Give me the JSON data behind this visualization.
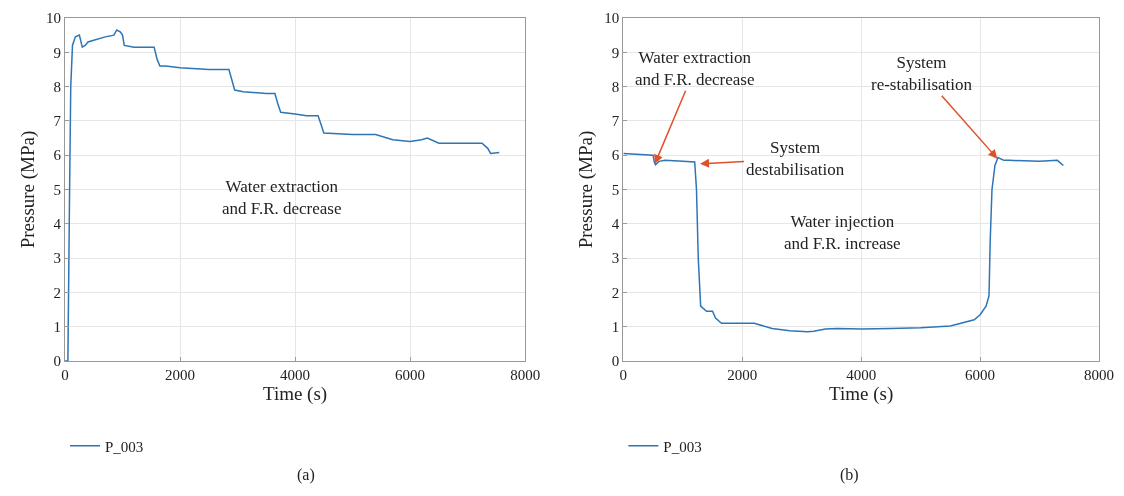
{
  "chart_data": [
    {
      "type": "line",
      "title": "(a)",
      "xlabel": "Time (s)",
      "ylabel": "Pressure (MPa)",
      "xlim": [
        0,
        8000
      ],
      "xticks": [
        0,
        2000,
        4000,
        6000,
        8000
      ],
      "ylim": [
        0,
        10
      ],
      "yticks": [
        0,
        1,
        2,
        3,
        4,
        5,
        6,
        7,
        8,
        9,
        10
      ],
      "grid": true,
      "legend": "bottom",
      "x": [
        0,
        50,
        80,
        100,
        130,
        180,
        250,
        300,
        350,
        400,
        500,
        700,
        850,
        900,
        960,
        1000,
        1030,
        1200,
        1550,
        1600,
        1650,
        1750,
        2000,
        2500,
        2850,
        2900,
        2950,
        3100,
        3500,
        3650,
        3700,
        3750,
        4000,
        4200,
        4400,
        4450,
        4500,
        5000,
        5400,
        5700,
        6000,
        6200,
        6300,
        6500,
        7000,
        7250,
        7350,
        7400,
        7550
      ],
      "series": [
        {
          "name": "P_003",
          "color": "#2e75b6",
          "values": [
            0,
            0,
            5,
            8,
            9.2,
            9.45,
            9.5,
            9.15,
            9.2,
            9.3,
            9.35,
            9.45,
            9.5,
            9.65,
            9.6,
            9.5,
            9.2,
            9.15,
            9.15,
            8.8,
            8.6,
            8.6,
            8.55,
            8.5,
            8.5,
            8.2,
            7.9,
            7.85,
            7.8,
            7.8,
            7.5,
            7.25,
            7.2,
            7.15,
            7.15,
            6.9,
            6.65,
            6.6,
            6.6,
            6.45,
            6.4,
            6.45,
            6.5,
            6.35,
            6.35,
            6.35,
            6.2,
            6.05,
            6.08
          ]
        }
      ],
      "annotations": [
        "Water extraction\nand F.R. decrease"
      ]
    },
    {
      "type": "line",
      "title": "(b)",
      "xlabel": "Time (s)",
      "ylabel": "Pressure (MPa)",
      "xlim": [
        0,
        8000
      ],
      "xticks": [
        0,
        2000,
        4000,
        6000,
        8000
      ],
      "ylim": [
        0,
        10
      ],
      "yticks": [
        0,
        1,
        2,
        3,
        4,
        5,
        6,
        7,
        8,
        9,
        10
      ],
      "grid": true,
      "legend": "bottom",
      "x": [
        0,
        500,
        520,
        540,
        600,
        700,
        1000,
        1200,
        1230,
        1260,
        1300,
        1400,
        1500,
        1550,
        1650,
        2000,
        2200,
        2500,
        2800,
        3100,
        3200,
        3400,
        3600,
        4000,
        4500,
        5000,
        5500,
        5900,
        6000,
        6100,
        6150,
        6170,
        6200,
        6250,
        6300,
        6400,
        6500,
        7000,
        7300,
        7400
      ],
      "series": [
        {
          "name": "P_003",
          "color": "#2e75b6",
          "values": [
            6.05,
            6.0,
            5.8,
            5.72,
            5.82,
            5.85,
            5.82,
            5.8,
            5.0,
            3.0,
            1.6,
            1.45,
            1.45,
            1.25,
            1.1,
            1.1,
            1.1,
            0.95,
            0.88,
            0.85,
            0.87,
            0.93,
            0.95,
            0.93,
            0.95,
            0.97,
            1.02,
            1.2,
            1.35,
            1.6,
            1.9,
            3.5,
            5.0,
            5.7,
            5.93,
            5.85,
            5.85,
            5.82,
            5.85,
            5.7
          ]
        }
      ],
      "annotations": [
        {
          "text": "Water extraction\nand F.R. decrease",
          "x": 530,
          "y": 5.75
        },
        {
          "text": "System\ndestabilisation",
          "x": 1290,
          "y": 5.75
        },
        {
          "text": "System\nre-stabilisation",
          "x": 6290,
          "y": 5.9
        },
        "Water injection\nand F.R. increase"
      ]
    }
  ]
}
